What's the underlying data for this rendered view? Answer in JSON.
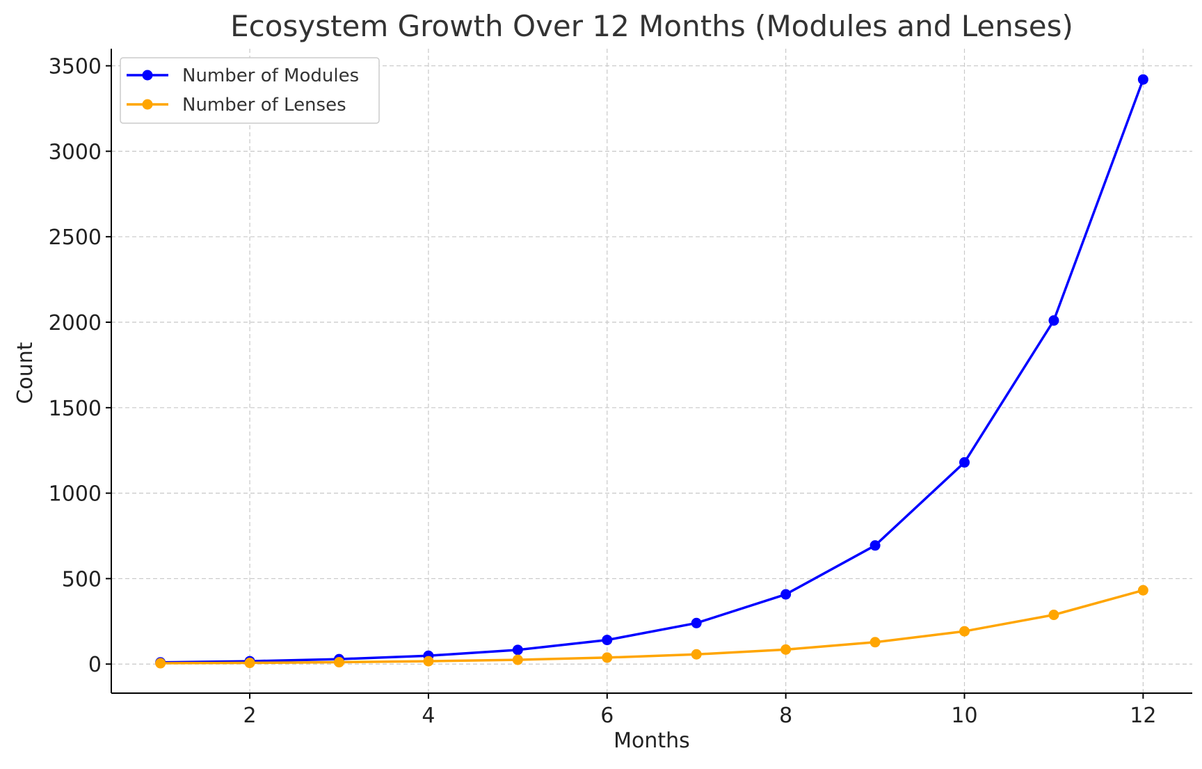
{
  "chart_data": {
    "type": "line",
    "title": "Ecosystem Growth Over 12 Months (Modules and Lenses)",
    "xlabel": "Months",
    "ylabel": "Count",
    "xlim": [
      0.45,
      12.55
    ],
    "ylim": [
      -170,
      3600
    ],
    "xticks": [
      2,
      4,
      6,
      8,
      10,
      12
    ],
    "yticks": [
      0,
      500,
      1000,
      1500,
      2000,
      2500,
      3000,
      3500
    ],
    "grid": true,
    "legend_position": "top-left",
    "x": [
      1,
      2,
      3,
      4,
      5,
      6,
      7,
      8,
      9,
      10,
      11,
      12
    ],
    "series": [
      {
        "name": "Number of Modules",
        "color": "#0000ff",
        "marker": "circle",
        "values": [
          10,
          17,
          29,
          49,
          83,
          141,
          240,
          408,
          694,
          1180,
          2010,
          3420
        ]
      },
      {
        "name": "Number of Lenses",
        "color": "#ffa500",
        "marker": "circle",
        "values": [
          5,
          7,
          11,
          17,
          25,
          38,
          57,
          85,
          128,
          192,
          288,
          432
        ]
      }
    ]
  }
}
